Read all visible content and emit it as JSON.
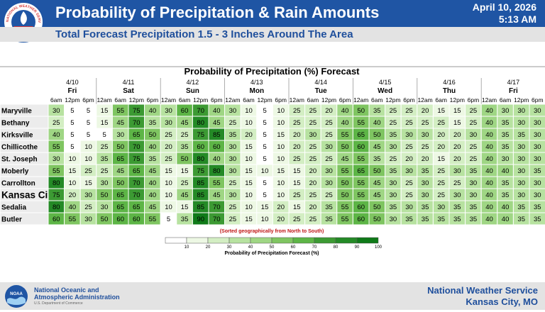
{
  "header": {
    "title": "Probability of Precipitation & Rain Amounts",
    "date": "April 10, 2026",
    "time": "5:13 AM",
    "subtitle": "Total Forecast Precipitation 1.5 - 3 Inches Around The Area",
    "logo_text": "NATIONAL WEATHER SERVICE"
  },
  "chart_data": {
    "type": "table",
    "title": "Probability of Precipitation (%) Forecast",
    "note": "(Sorted geographically from North to South)",
    "days": [
      {
        "date": "4/10",
        "day": "Fri",
        "times": [
          "6am",
          "12pm",
          "6pm"
        ]
      },
      {
        "date": "4/11",
        "day": "Sat",
        "times": [
          "12am",
          "6am",
          "12pm",
          "6pm"
        ]
      },
      {
        "date": "4/12",
        "day": "Sun",
        "times": [
          "12am",
          "6am",
          "12pm",
          "6pm"
        ]
      },
      {
        "date": "4/13",
        "day": "Mon",
        "times": [
          "12am",
          "6am",
          "12pm",
          "6pm"
        ]
      },
      {
        "date": "4/14",
        "day": "Tue",
        "times": [
          "12am",
          "6am",
          "12pm",
          "6pm"
        ]
      },
      {
        "date": "4/15",
        "day": "Wed",
        "times": [
          "12am",
          "6am",
          "12pm",
          "6pm"
        ]
      },
      {
        "date": "4/16",
        "day": "Thu",
        "times": [
          "12am",
          "6am",
          "12pm",
          "6pm"
        ]
      },
      {
        "date": "4/17",
        "day": "Fri",
        "times": [
          "12am",
          "6am",
          "12pm",
          "6pm"
        ]
      }
    ],
    "rows": [
      {
        "location": "Maryville",
        "values": [
          30,
          5,
          5,
          15,
          55,
          75,
          40,
          30,
          60,
          70,
          40,
          30,
          10,
          5,
          10,
          25,
          25,
          20,
          40,
          50,
          35,
          25,
          25,
          20,
          15,
          15,
          25,
          40,
          30,
          30,
          30
        ]
      },
      {
        "location": "Bethany",
        "values": [
          25,
          5,
          5,
          15,
          45,
          70,
          35,
          30,
          45,
          80,
          45,
          25,
          10,
          5,
          10,
          25,
          25,
          25,
          40,
          55,
          40,
          25,
          25,
          25,
          25,
          15,
          25,
          40,
          35,
          30,
          30
        ]
      },
      {
        "location": "Kirksville",
        "values": [
          40,
          5,
          5,
          5,
          30,
          65,
          50,
          25,
          25,
          75,
          85,
          35,
          20,
          5,
          15,
          20,
          30,
          25,
          55,
          65,
          50,
          35,
          30,
          30,
          20,
          20,
          30,
          40,
          35,
          35,
          30
        ]
      },
      {
        "location": "Chillicothe",
        "values": [
          55,
          5,
          10,
          25,
          50,
          70,
          40,
          20,
          35,
          60,
          60,
          30,
          15,
          5,
          10,
          20,
          25,
          30,
          50,
          60,
          45,
          30,
          25,
          25,
          20,
          20,
          25,
          40,
          35,
          30,
          30
        ]
      },
      {
        "location": "St. Joseph",
        "values": [
          30,
          10,
          10,
          35,
          65,
          75,
          35,
          25,
          50,
          80,
          40,
          30,
          10,
          5,
          10,
          25,
          25,
          25,
          45,
          55,
          35,
          25,
          20,
          20,
          15,
          20,
          25,
          40,
          30,
          30,
          30
        ]
      },
      {
        "location": "Moberly",
        "values": [
          55,
          15,
          25,
          25,
          45,
          65,
          45,
          15,
          15,
          75,
          80,
          30,
          15,
          10,
          15,
          15,
          20,
          30,
          55,
          65,
          50,
          35,
          30,
          35,
          25,
          30,
          35,
          40,
          40,
          30,
          35
        ]
      },
      {
        "location": "Carrollton",
        "values": [
          80,
          10,
          15,
          30,
          50,
          70,
          40,
          10,
          25,
          85,
          55,
          25,
          15,
          5,
          10,
          15,
          20,
          30,
          50,
          55,
          45,
          30,
          25,
          30,
          25,
          25,
          30,
          40,
          35,
          30,
          30
        ]
      },
      {
        "location": "Kansas City",
        "values": [
          75,
          20,
          30,
          50,
          65,
          70,
          40,
          10,
          45,
          85,
          45,
          30,
          10,
          5,
          10,
          25,
          25,
          25,
          50,
          55,
          45,
          30,
          25,
          30,
          25,
          30,
          30,
          40,
          35,
          30,
          30
        ]
      },
      {
        "location": "Sedalia",
        "values": [
          80,
          40,
          25,
          30,
          65,
          65,
          45,
          10,
          15,
          85,
          70,
          25,
          10,
          15,
          20,
          15,
          20,
          35,
          55,
          60,
          50,
          35,
          30,
          35,
          30,
          35,
          35,
          40,
          40,
          35,
          35
        ]
      },
      {
        "location": "Butler",
        "values": [
          60,
          55,
          30,
          50,
          60,
          60,
          55,
          5,
          35,
          90,
          70,
          25,
          15,
          10,
          20,
          25,
          25,
          35,
          55,
          60,
          50,
          30,
          35,
          35,
          35,
          35,
          35,
          40,
          40,
          35,
          35
        ]
      }
    ],
    "colorbar": {
      "ticks": [
        "10",
        "20",
        "30",
        "40",
        "50",
        "60",
        "70",
        "80",
        "90",
        "100"
      ],
      "label": "Probability of Precipitation Forecast (%)",
      "colors": [
        "#ffffff",
        "#edf8e4",
        "#d3eec3",
        "#b7e2a0",
        "#9fd684",
        "#7fc561",
        "#5db546",
        "#3c9a33",
        "#248a26",
        "#0f7a18"
      ]
    }
  },
  "footer": {
    "agency_line1": "National Oceanic and",
    "agency_line2": "Atmospheric Administration",
    "department": "U.S. Department of Commerce",
    "office_line1": "National Weather Service",
    "office_line2": "Kansas City, MO",
    "noaa_logo_text": "NOAA"
  }
}
